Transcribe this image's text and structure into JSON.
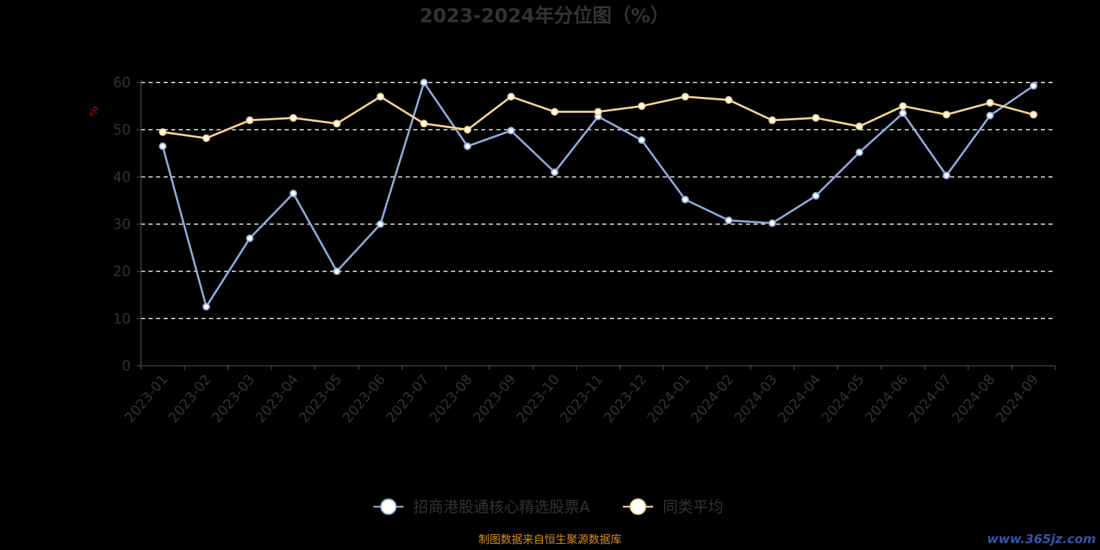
{
  "chart_data": {
    "type": "line",
    "title": "2023-2024年分位图（%）",
    "ylabel": "%",
    "ylim": [
      0,
      60
    ],
    "yticks": [
      0,
      10,
      20,
      30,
      40,
      50,
      60
    ],
    "grid": true,
    "legend_position": "bottom",
    "categories": [
      "2023-01",
      "2023-02",
      "2023-03",
      "2023-04",
      "2023-05",
      "2023-06",
      "2023-07",
      "2023-08",
      "2023-09",
      "2023-10",
      "2023-11",
      "2023-12",
      "2024-01",
      "2024-02",
      "2024-03",
      "2024-04",
      "2024-05",
      "2024-06",
      "2024-07",
      "2024-08",
      "2024-09"
    ],
    "series": [
      {
        "name": "招商港股通核心精选股票A",
        "color": "#8eaad8",
        "values": [
          46.5,
          12.5,
          27,
          36.5,
          20,
          30,
          60,
          46.5,
          49.8,
          41,
          52.8,
          47.8,
          35.2,
          30.8,
          30.2,
          36,
          45.2,
          53.5,
          40.3,
          53,
          59.3
        ]
      },
      {
        "name": "同类平均",
        "color": "#fbd38f",
        "values": [
          49.5,
          48.2,
          52,
          52.5,
          51.3,
          57,
          51.3,
          50,
          57,
          53.8,
          53.8,
          55,
          57,
          56.3,
          52,
          52.5,
          50.7,
          55,
          53.2,
          55.7,
          53.2
        ]
      }
    ]
  },
  "footer": {
    "source": "制图数据来自恒生聚源数据库",
    "watermark": "www.365jz.com"
  }
}
